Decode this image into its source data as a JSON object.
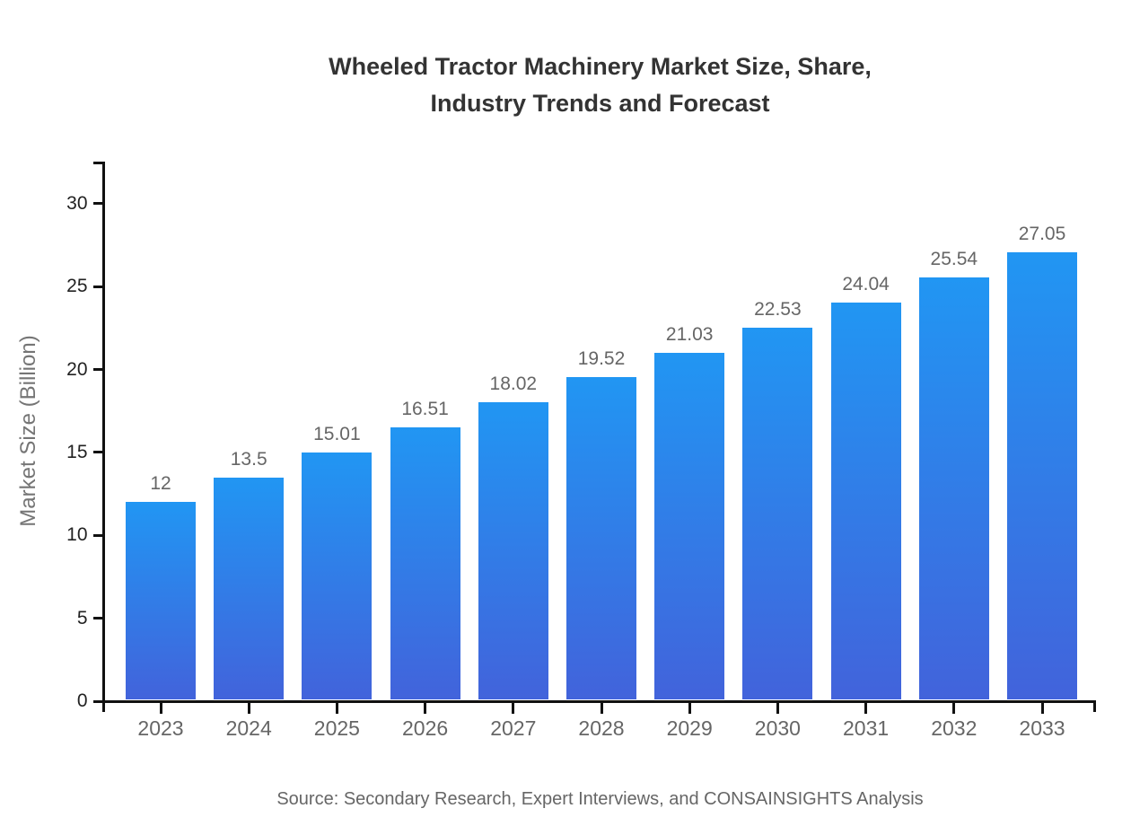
{
  "chart_data": {
    "type": "bar",
    "title": "Wheeled Tractor Machinery Market Size, Share, Industry Trends and Forecast",
    "title_lines": [
      "Wheeled Tractor Machinery Market Size, Share,",
      "Industry Trends and Forecast"
    ],
    "xlabel": "",
    "ylabel": "Market Size (Billion)",
    "categories": [
      "2023",
      "2024",
      "2025",
      "2026",
      "2027",
      "2028",
      "2029",
      "2030",
      "2031",
      "2032",
      "2033"
    ],
    "values": [
      12,
      13.5,
      15.01,
      16.51,
      18.02,
      19.52,
      21.03,
      22.53,
      24.04,
      25.54,
      27.05
    ],
    "value_labels": [
      "12",
      "13.5",
      "15.01",
      "16.51",
      "18.02",
      "19.52",
      "21.03",
      "22.53",
      "24.04",
      "25.54",
      "27.05"
    ],
    "yticks": [
      0,
      5,
      10,
      15,
      20,
      25,
      30
    ],
    "ylim": [
      0,
      32.5
    ],
    "grid": false,
    "legend": "none",
    "source_note": "Source: Secondary Research, Expert Interviews, and CONSAINSIGHTS Analysis",
    "colors": {
      "bar_gradient_top": "#2196F3",
      "bar_gradient_bottom": "#4263DB",
      "axis": "#111111",
      "y_tick_label": "#222222",
      "category_label": "#666666",
      "value_label": "#666666",
      "title": "#333333",
      "y_axis_title": "#757575",
      "source": "#666666",
      "background": "#FFFFFF"
    }
  }
}
